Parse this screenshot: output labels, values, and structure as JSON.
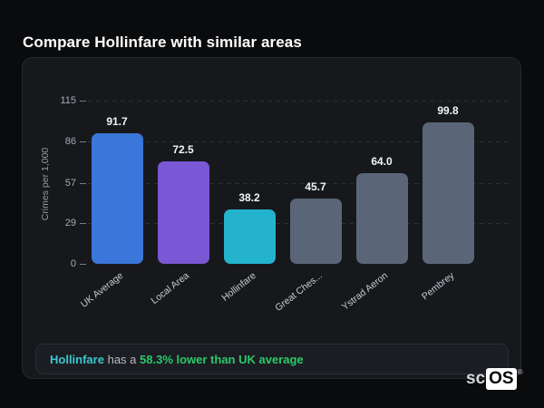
{
  "page": {
    "title": "Compare Hollinfare with similar areas"
  },
  "chart_data": {
    "type": "bar",
    "categories": [
      "UK Average",
      "Local Area",
      "Hollinfare",
      "Great Ches...",
      "Ystrad Aeron",
      "Pembrey"
    ],
    "values": [
      91.7,
      72.5,
      38.2,
      45.7,
      64.0,
      99.8
    ],
    "value_labels": [
      "91.7",
      "72.5",
      "38.2",
      "45.7",
      "64.0",
      "99.8"
    ],
    "bar_colors": [
      "#3b76db",
      "#7a57d4",
      "#23b3cd",
      "#5a6678",
      "#5a6678",
      "#5a6678"
    ],
    "title": "",
    "xlabel": "",
    "ylabel": "Crimes per 1,000",
    "ylim": [
      0,
      115
    ],
    "yticks": [
      0,
      29,
      57,
      86,
      115
    ],
    "grid": "horizontal-dashed",
    "legend": "none"
  },
  "note": {
    "subject": "Hollinfare",
    "connector": " has a ",
    "highlight": "58.3% lower than UK average",
    "subject_color": "#3bc8cf",
    "highlight_color": "#2bc96a"
  },
  "branding": {
    "prefix": "sc",
    "name": "OS",
    "registered": "®"
  },
  "colors": {
    "page_bg": "#0a0b0d",
    "card_bg": "#17181c",
    "card_border": "#26282e",
    "note_bg": "#1b1d22",
    "note_border": "#2b2e34",
    "grid": "#2c2f35",
    "tick_text": "#a7abb3",
    "axis_title": "#9599a1",
    "value_label": "#f3f4f6",
    "x_label": "#c6cad1",
    "title_text": "#ffffff"
  }
}
